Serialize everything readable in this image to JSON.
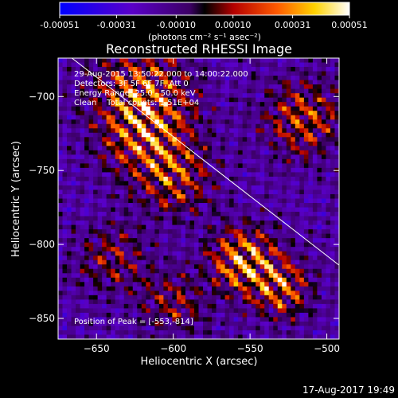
{
  "chart_data": {
    "type": "heatmap",
    "title": "Reconstructed RHESSI Image",
    "xlabel": "Heliocentric X (arcsec)",
    "ylabel": "Heliocentric Y (arcsec)",
    "xlim": [
      -675,
      -492
    ],
    "ylim": [
      -864,
      -674
    ],
    "xticks": [
      -650,
      -600,
      -550,
      -500
    ],
    "yticks": [
      -700,
      -750,
      -800,
      -850
    ],
    "colorbar": {
      "min": -0.00051,
      "max": 0.00051,
      "ticks": [
        -0.00051,
        -0.00031,
        -0.0001,
        0.0001,
        0.00031,
        0.00051
      ],
      "tick_labels": [
        "-0.00051",
        "-0.00031",
        "-0.00010",
        "0.00010",
        "0.00031",
        "0.00051"
      ],
      "units": "(photons cm⁻² s⁻¹ asec⁻²)"
    },
    "annotations": [
      "29-Aug-2015 13:50:22.000 to 14:00:22.000",
      "Detectors: 3F 5F 6F 7F, Att 0",
      "Energy Range: 25.0 - 50.0 keV",
      "Clean    Total counts: 1.51E+04"
    ],
    "peak_label": "Position of Peak = [-553,-814]",
    "peak": [
      -553,
      -814
    ],
    "limb_line": [
      [
        -666,
        -674
      ],
      [
        -492,
        -814
      ]
    ],
    "hotspots": [
      {
        "x": -620,
        "y": -695,
        "sigma": 22,
        "amp": 1.0
      },
      {
        "x": -620,
        "y": -725,
        "sigma": 20,
        "amp": 0.9
      },
      {
        "x": -600,
        "y": -755,
        "sigma": 18,
        "amp": 0.9
      },
      {
        "x": -555,
        "y": -810,
        "sigma": 15,
        "amp": 1.4
      },
      {
        "x": -530,
        "y": -830,
        "sigma": 14,
        "amp": 1.1
      },
      {
        "x": -515,
        "y": -715,
        "sigma": 18,
        "amp": 1.0
      },
      {
        "x": -640,
        "y": -810,
        "sigma": 16,
        "amp": 0.7
      },
      {
        "x": -600,
        "y": -840,
        "sigma": 15,
        "amp": 0.7
      }
    ]
  },
  "footer": {
    "timestamp": "17-Aug-2017 19:49"
  }
}
